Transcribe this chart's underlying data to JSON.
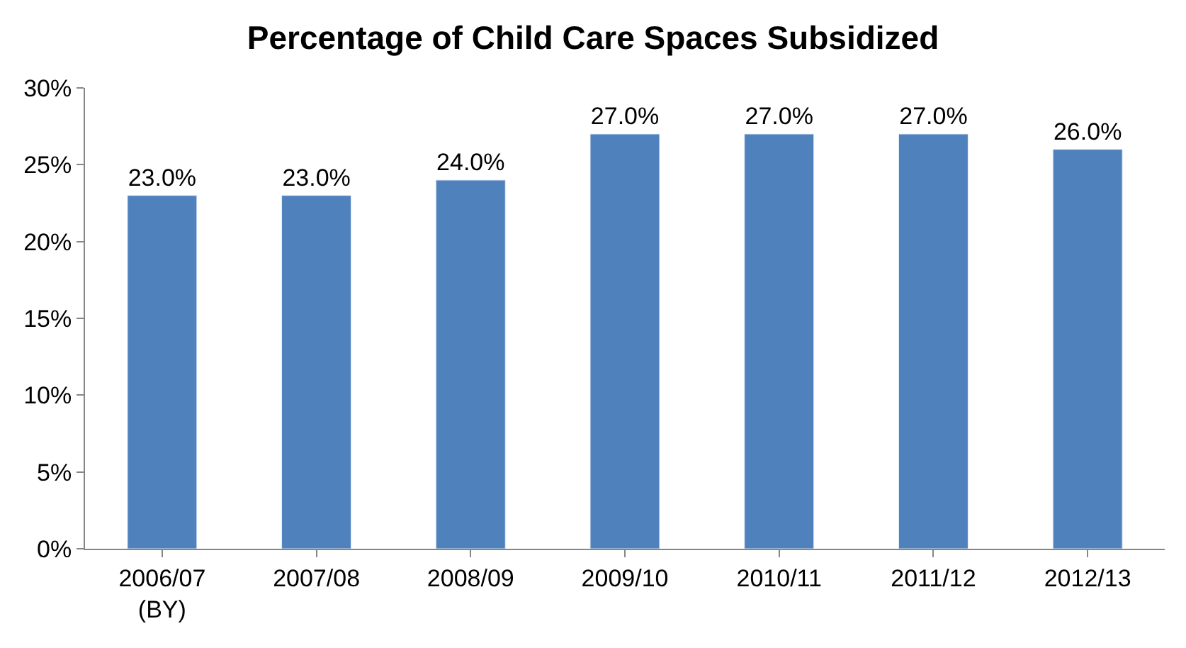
{
  "chart_data": {
    "type": "bar",
    "title": "Percentage of Child Care Spaces Subsidized",
    "categories": [
      "2006/07\n(BY)",
      "2007/08",
      "2008/09",
      "2009/10",
      "2010/11",
      "2011/12",
      "2012/13"
    ],
    "values": [
      23,
      23,
      24,
      27,
      27,
      27,
      26
    ],
    "value_labels": [
      "23.0%",
      "23.0%",
      "24.0%",
      "27.0%",
      "27.0%",
      "27.0%",
      "26.0%"
    ],
    "color": "#4f81bd",
    "ylim": [
      0,
      30
    ],
    "yticks": [
      {
        "value": 0,
        "label": "0%"
      },
      {
        "value": 5,
        "label": "5%"
      },
      {
        "value": 10,
        "label": "10%"
      },
      {
        "value": 15,
        "label": "15%"
      },
      {
        "value": 20,
        "label": "20%"
      },
      {
        "value": 25,
        "label": "25%"
      },
      {
        "value": 30,
        "label": "30%"
      }
    ],
    "grid": false,
    "legend": false
  }
}
